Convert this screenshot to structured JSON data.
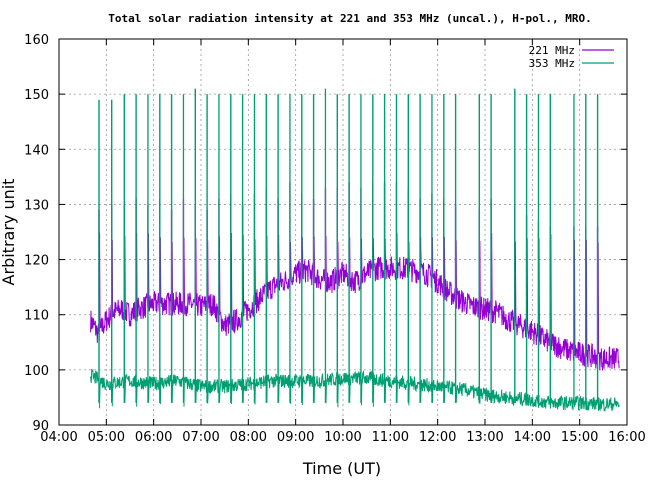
{
  "chart_data": {
    "type": "line",
    "title": "Total solar radiation intensity at 221 and 353 MHz (uncal.), H-pol., MRO.",
    "xlabel": "Time (UT)",
    "ylabel": "Arbitrary unit",
    "xlim": [
      "04:00",
      "16:00"
    ],
    "ylim": [
      90,
      160
    ],
    "grid": true,
    "legend_position": "top-right",
    "x_ticks": [
      "04:00",
      "05:00",
      "06:00",
      "07:00",
      "08:00",
      "09:00",
      "10:00",
      "11:00",
      "12:00",
      "13:00",
      "14:00",
      "15:00",
      "16:00"
    ],
    "y_ticks": [
      "90",
      "100",
      "110",
      "120",
      "130",
      "140",
      "150",
      "160"
    ],
    "series": [
      {
        "name": "221 MHz",
        "color": "#9400d3",
        "baseline_points": [
          [
            "04:40",
            109
          ],
          [
            "04:50",
            106.5
          ],
          [
            "05:00",
            109
          ],
          [
            "05:10",
            110.5
          ],
          [
            "05:20",
            111
          ],
          [
            "05:30",
            110
          ],
          [
            "05:40",
            111
          ],
          [
            "05:50",
            111.5
          ],
          [
            "06:00",
            112
          ],
          [
            "06:15",
            112
          ],
          [
            "06:30",
            112
          ],
          [
            "06:45",
            112
          ],
          [
            "07:00",
            111.5
          ],
          [
            "07:15",
            112
          ],
          [
            "07:30",
            108
          ],
          [
            "07:45",
            109
          ],
          [
            "08:00",
            111
          ],
          [
            "08:15",
            113
          ],
          [
            "08:30",
            115
          ],
          [
            "08:45",
            116
          ],
          [
            "09:00",
            117.5
          ],
          [
            "09:15",
            118
          ],
          [
            "09:30",
            116.5
          ],
          [
            "09:45",
            116
          ],
          [
            "10:00",
            117.5
          ],
          [
            "10:15",
            116
          ],
          [
            "10:30",
            117.5
          ],
          [
            "10:45",
            118.5
          ],
          [
            "11:00",
            118.5
          ],
          [
            "11:15",
            118.5
          ],
          [
            "11:30",
            118
          ],
          [
            "11:45",
            117.5
          ],
          [
            "12:00",
            116
          ],
          [
            "12:15",
            114
          ],
          [
            "12:30",
            112.5
          ],
          [
            "12:45",
            111.5
          ],
          [
            "13:00",
            111
          ],
          [
            "13:15",
            110.5
          ],
          [
            "13:30",
            109
          ],
          [
            "13:45",
            108
          ],
          [
            "14:00",
            107
          ],
          [
            "14:15",
            105.5
          ],
          [
            "14:30",
            104.5
          ],
          [
            "14:45",
            103.5
          ],
          [
            "15:00",
            103
          ],
          [
            "15:15",
            102.5
          ],
          [
            "15:30",
            102
          ],
          [
            "15:45",
            102
          ]
        ],
        "spike_peaks": [
          129,
          130,
          130,
          131,
          130,
          131,
          129,
          131,
          130,
          129,
          131,
          132,
          130,
          132,
          133,
          131,
          134,
          132,
          131,
          133,
          133,
          134,
          133,
          134,
          134,
          134,
          133,
          131,
          132,
          131,
          130,
          129,
          131,
          130,
          128,
          127,
          126,
          126,
          126,
          126
        ]
      },
      {
        "name": "353 MHz",
        "color": "#009e73",
        "baseline_points": [
          [
            "04:40",
            99
          ],
          [
            "05:00",
            97.5
          ],
          [
            "05:30",
            98
          ],
          [
            "06:00",
            97.5
          ],
          [
            "06:30",
            98
          ],
          [
            "07:00",
            97
          ],
          [
            "07:30",
            97
          ],
          [
            "08:00",
            97.5
          ],
          [
            "08:30",
            98
          ],
          [
            "09:00",
            98
          ],
          [
            "09:30",
            98
          ],
          [
            "10:00",
            98.5
          ],
          [
            "10:30",
            98.5
          ],
          [
            "11:00",
            98
          ],
          [
            "11:30",
            97.5
          ],
          [
            "12:00",
            97
          ],
          [
            "12:30",
            96.5
          ],
          [
            "13:00",
            95.5
          ],
          [
            "13:30",
            95
          ],
          [
            "14:00",
            94.5
          ],
          [
            "14:30",
            94
          ],
          [
            "15:00",
            94
          ],
          [
            "15:30",
            93.8
          ],
          [
            "15:45",
            93.8
          ]
        ],
        "spike_peaks": [
          149,
          149,
          150,
          150,
          150,
          150,
          150,
          150,
          151,
          150,
          150,
          150,
          150,
          150,
          150,
          150,
          150,
          150,
          150,
          151,
          150,
          150,
          150,
          150,
          150,
          150,
          150,
          150,
          150,
          150,
          150,
          150,
          150,
          151,
          150,
          150,
          150,
          150,
          150,
          150
        ]
      }
    ],
    "spike_times": [
      "04:51",
      "05:07",
      "05:23",
      "05:38",
      "05:53",
      "06:08",
      "06:23",
      "06:38",
      "06:53",
      "07:08",
      "07:23",
      "07:38",
      "07:53",
      "08:08",
      "08:23",
      "08:38",
      "08:53",
      "09:08",
      "09:23",
      "09:38",
      "09:53",
      "10:08",
      "10:23",
      "10:38",
      "10:53",
      "11:08",
      "11:23",
      "11:38",
      "11:53",
      "12:08",
      "12:23",
      "12:53",
      "13:08",
      "13:38",
      "13:53",
      "14:08",
      "14:23",
      "14:53",
      "15:08",
      "15:23"
    ]
  }
}
